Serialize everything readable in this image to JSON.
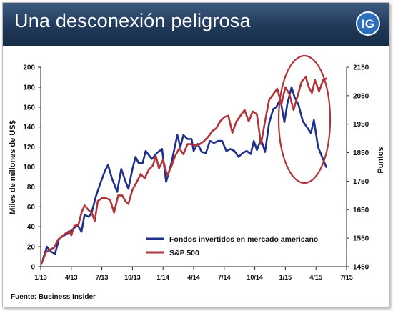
{
  "header": {
    "title": "Una desconexión peligrosa",
    "logo_text": "IG"
  },
  "footer": {
    "source": "Fuente: Business Insider"
  },
  "colors": {
    "header_bg": "#213a5a",
    "series_funds": "#1f2f8c",
    "series_sp500": "#b0343a",
    "highlight": "#b0343a"
  },
  "chart_data": {
    "type": "line",
    "ylabel": "Miles de millones de US$",
    "y2label": "Puntos",
    "ylim": [
      0,
      200
    ],
    "y2lim": [
      1450,
      2150
    ],
    "yticks": [
      0,
      20,
      40,
      60,
      80,
      100,
      120,
      140,
      160,
      180,
      200
    ],
    "y2ticks": [
      1450,
      1550,
      1650,
      1750,
      1850,
      1950,
      2050,
      2150
    ],
    "xlim": [
      0,
      30
    ],
    "xticks": [
      {
        "pos": 0,
        "label": "1/13"
      },
      {
        "pos": 3,
        "label": "4/13"
      },
      {
        "pos": 6,
        "label": "7/13"
      },
      {
        "pos": 9,
        "label": "10/13"
      },
      {
        "pos": 12,
        "label": "1/14"
      },
      {
        "pos": 15,
        "label": "4/14"
      },
      {
        "pos": 18,
        "label": "7/14"
      },
      {
        "pos": 21,
        "label": "10/14"
      },
      {
        "pos": 24,
        "label": "1/15"
      },
      {
        "pos": 27,
        "label": "4/15"
      },
      {
        "pos": 30,
        "label": "7/15"
      }
    ],
    "legend_position": "bottom-right",
    "series": [
      {
        "name": "Fondos invertidos en mercado americano",
        "axis": "left",
        "points": [
          [
            0.2,
            7
          ],
          [
            0.6,
            20
          ],
          [
            1.0,
            15
          ],
          [
            1.4,
            13
          ],
          [
            1.8,
            28
          ],
          [
            2.4,
            32
          ],
          [
            3.0,
            36
          ],
          [
            3.6,
            42
          ],
          [
            4.0,
            35
          ],
          [
            4.3,
            52
          ],
          [
            4.7,
            50
          ],
          [
            5.0,
            54
          ],
          [
            5.4,
            70
          ],
          [
            5.8,
            82
          ],
          [
            6.3,
            96
          ],
          [
            6.6,
            102
          ],
          [
            7.0,
            88
          ],
          [
            7.5,
            75
          ],
          [
            7.9,
            98
          ],
          [
            8.3,
            86
          ],
          [
            8.6,
            78
          ],
          [
            9.0,
            98
          ],
          [
            9.3,
            110
          ],
          [
            9.6,
            104
          ],
          [
            10.0,
            104
          ],
          [
            10.3,
            116
          ],
          [
            10.6,
            112
          ],
          [
            10.9,
            108
          ],
          [
            11.4,
            114
          ],
          [
            11.9,
            118
          ],
          [
            12.3,
            85
          ],
          [
            12.8,
            103
          ],
          [
            13.4,
            132
          ],
          [
            13.7,
            120
          ],
          [
            14.0,
            132
          ],
          [
            14.4,
            128
          ],
          [
            14.8,
            128
          ],
          [
            15.0,
            116
          ],
          [
            15.4,
            123
          ],
          [
            15.8,
            115
          ],
          [
            16.2,
            114
          ],
          [
            16.6,
            126
          ],
          [
            17.0,
            124
          ],
          [
            17.4,
            126
          ],
          [
            17.8,
            126
          ],
          [
            18.2,
            116
          ],
          [
            18.6,
            118
          ],
          [
            19.0,
            116
          ],
          [
            19.4,
            110
          ],
          [
            19.8,
            114
          ],
          [
            20.2,
            116
          ],
          [
            20.6,
            113
          ],
          [
            20.9,
            126
          ],
          [
            21.2,
            117
          ],
          [
            21.6,
            128
          ],
          [
            22.0,
            115
          ],
          [
            22.4,
            144
          ],
          [
            22.8,
            158
          ],
          [
            23.1,
            160
          ],
          [
            23.5,
            168
          ],
          [
            23.9,
            145
          ],
          [
            24.2,
            164
          ],
          [
            24.6,
            180
          ],
          [
            24.9,
            170
          ],
          [
            25.3,
            162
          ],
          [
            25.7,
            146
          ],
          [
            26.1,
            140
          ],
          [
            26.5,
            134
          ],
          [
            26.8,
            147
          ],
          [
            27.2,
            120
          ],
          [
            27.6,
            110
          ],
          [
            28.0,
            100
          ]
        ]
      },
      {
        "name": "S&P 500",
        "axis": "right",
        "points": [
          [
            0.1,
            1462
          ],
          [
            0.5,
            1500
          ],
          [
            0.9,
            1510
          ],
          [
            1.3,
            1516
          ],
          [
            1.7,
            1545
          ],
          [
            2.3,
            1563
          ],
          [
            2.8,
            1575
          ],
          [
            3.0,
            1560
          ],
          [
            3.3,
            1593
          ],
          [
            3.7,
            1597
          ],
          [
            4.0,
            1640
          ],
          [
            4.3,
            1665
          ],
          [
            4.7,
            1648
          ],
          [
            5.0,
            1640
          ],
          [
            5.3,
            1610
          ],
          [
            5.6,
            1680
          ],
          [
            6.0,
            1690
          ],
          [
            6.4,
            1690
          ],
          [
            6.8,
            1685
          ],
          [
            7.2,
            1640
          ],
          [
            7.6,
            1700
          ],
          [
            8.0,
            1700
          ],
          [
            8.3,
            1680
          ],
          [
            8.6,
            1670
          ],
          [
            9.0,
            1720
          ],
          [
            9.4,
            1745
          ],
          [
            9.8,
            1775
          ],
          [
            10.2,
            1760
          ],
          [
            10.6,
            1790
          ],
          [
            11.0,
            1805
          ],
          [
            11.3,
            1838
          ],
          [
            11.6,
            1795
          ],
          [
            12.0,
            1825
          ],
          [
            12.4,
            1770
          ],
          [
            12.8,
            1800
          ],
          [
            13.2,
            1840
          ],
          [
            13.6,
            1865
          ],
          [
            14.0,
            1845
          ],
          [
            14.4,
            1880
          ],
          [
            14.8,
            1880
          ],
          [
            15.2,
            1875
          ],
          [
            15.6,
            1880
          ],
          [
            16.0,
            1890
          ],
          [
            16.4,
            1905
          ],
          [
            16.8,
            1925
          ],
          [
            17.2,
            1935
          ],
          [
            17.6,
            1960
          ],
          [
            18.0,
            1975
          ],
          [
            18.4,
            1980
          ],
          [
            18.8,
            1920
          ],
          [
            19.2,
            1960
          ],
          [
            19.6,
            1980
          ],
          [
            20.0,
            2000
          ],
          [
            20.4,
            1960
          ],
          [
            20.8,
            1995
          ],
          [
            21.2,
            1985
          ],
          [
            21.6,
            1880
          ],
          [
            22.0,
            1960
          ],
          [
            22.4,
            2035
          ],
          [
            22.8,
            2055
          ],
          [
            23.2,
            2075
          ],
          [
            23.6,
            2020
          ],
          [
            24.0,
            2080
          ],
          [
            24.4,
            2055
          ],
          [
            24.8,
            2000
          ],
          [
            25.2,
            2050
          ],
          [
            25.6,
            2100
          ],
          [
            26.0,
            2115
          ],
          [
            26.3,
            2080
          ],
          [
            26.6,
            2060
          ],
          [
            26.9,
            2105
          ],
          [
            27.3,
            2065
          ],
          [
            27.7,
            2105
          ],
          [
            28.0,
            2110
          ]
        ]
      }
    ]
  }
}
